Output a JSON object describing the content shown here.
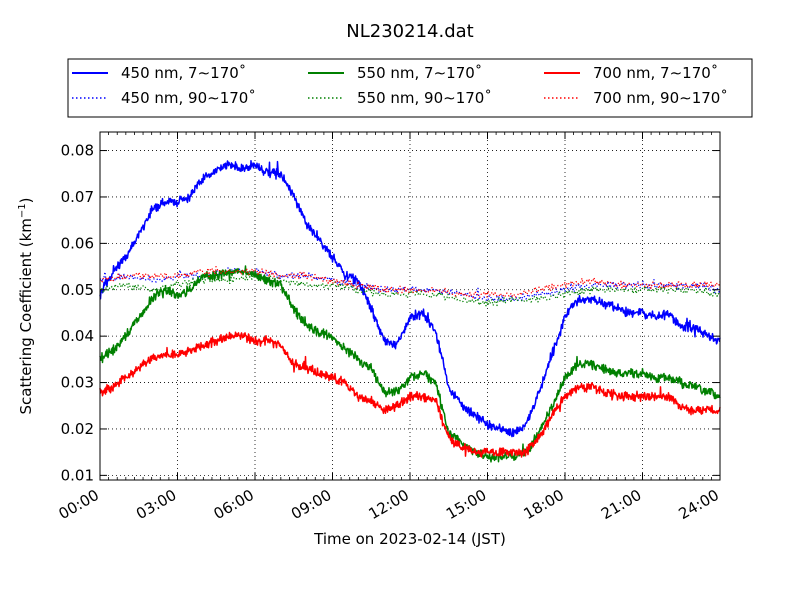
{
  "chart_data": {
    "type": "line",
    "title": "NL230214.dat",
    "xlabel": "Time on 2023-02-14 (JST)",
    "ylabel": "Scattering Coefficient (km",
    "ylabel_sup": "−1",
    "ylabel_close": ")",
    "xlim": [
      0,
      24
    ],
    "ylim": [
      0.009,
      0.084
    ],
    "xticks": [
      0,
      3,
      6,
      9,
      12,
      15,
      18,
      21,
      24
    ],
    "xtick_labels": [
      "00:00",
      "03:00",
      "06:00",
      "09:00",
      "12:00",
      "15:00",
      "18:00",
      "21:00",
      "24:00"
    ],
    "yticks": [
      0.01,
      0.02,
      0.03,
      0.04,
      0.05,
      0.06,
      0.07,
      0.08
    ],
    "ytick_labels": [
      "0.01",
      "0.02",
      "0.03",
      "0.04",
      "0.05",
      "0.06",
      "0.07",
      "0.08"
    ],
    "grid": true,
    "legend_position": "top",
    "series": [
      {
        "name": "450 nm, 7∼170˚",
        "color": "#0000ff",
        "style": "solid",
        "x": [
          0,
          0.5,
          1,
          1.5,
          2,
          2.5,
          3,
          3.5,
          4,
          4.5,
          5,
          5.5,
          6,
          6.5,
          7,
          7.5,
          8,
          8.5,
          9,
          9.5,
          10,
          10.5,
          11,
          11.5,
          12,
          12.5,
          13,
          13.5,
          14,
          14.5,
          15,
          15.5,
          16,
          16.5,
          17,
          17.5,
          18,
          18.5,
          19,
          19.5,
          20,
          20.5,
          21,
          21.5,
          22,
          22.5,
          23,
          23.5,
          24
        ],
        "y": [
          0.049,
          0.054,
          0.057,
          0.062,
          0.067,
          0.069,
          0.069,
          0.07,
          0.074,
          0.076,
          0.077,
          0.076,
          0.077,
          0.075,
          0.075,
          0.07,
          0.064,
          0.061,
          0.057,
          0.053,
          0.052,
          0.046,
          0.039,
          0.038,
          0.044,
          0.045,
          0.041,
          0.029,
          0.025,
          0.023,
          0.021,
          0.02,
          0.019,
          0.021,
          0.028,
          0.036,
          0.044,
          0.048,
          0.048,
          0.047,
          0.046,
          0.045,
          0.045,
          0.044,
          0.045,
          0.042,
          0.042,
          0.04,
          0.039
        ]
      },
      {
        "name": "450 nm, 90∼170˚",
        "color": "#0000ff",
        "style": "dotted",
        "x": [
          0,
          1,
          2,
          3,
          4,
          5,
          6,
          7,
          8,
          9,
          10,
          11,
          12,
          13,
          14,
          15,
          16,
          17,
          18,
          19,
          20,
          21,
          22,
          23,
          24
        ],
        "y": [
          0.052,
          0.053,
          0.052,
          0.053,
          0.053,
          0.054,
          0.054,
          0.053,
          0.053,
          0.052,
          0.051,
          0.05,
          0.05,
          0.05,
          0.049,
          0.048,
          0.048,
          0.049,
          0.05,
          0.051,
          0.051,
          0.051,
          0.051,
          0.051,
          0.05
        ]
      },
      {
        "name": "550 nm, 7∼170˚",
        "color": "#008000",
        "style": "solid",
        "x": [
          0,
          0.5,
          1,
          1.5,
          2,
          2.5,
          3,
          3.5,
          4,
          4.5,
          5,
          5.5,
          6,
          6.5,
          7,
          7.5,
          8,
          8.5,
          9,
          9.5,
          10,
          10.5,
          11,
          11.5,
          12,
          12.5,
          13,
          13.5,
          14,
          14.5,
          15,
          15.5,
          16,
          16.5,
          17,
          17.5,
          18,
          18.5,
          19,
          19.5,
          20,
          20.5,
          21,
          21.5,
          22,
          22.5,
          23,
          23.5,
          24
        ],
        "y": [
          0.035,
          0.037,
          0.04,
          0.044,
          0.048,
          0.05,
          0.049,
          0.05,
          0.053,
          0.053,
          0.054,
          0.054,
          0.053,
          0.052,
          0.051,
          0.046,
          0.042,
          0.041,
          0.04,
          0.037,
          0.035,
          0.033,
          0.028,
          0.028,
          0.031,
          0.032,
          0.03,
          0.019,
          0.017,
          0.015,
          0.014,
          0.014,
          0.014,
          0.015,
          0.019,
          0.025,
          0.031,
          0.034,
          0.034,
          0.033,
          0.032,
          0.032,
          0.032,
          0.031,
          0.031,
          0.03,
          0.029,
          0.028,
          0.027
        ]
      },
      {
        "name": "550 nm, 90∼170˚",
        "color": "#008000",
        "style": "dotted",
        "x": [
          0,
          1,
          2,
          3,
          4,
          5,
          6,
          7,
          8,
          9,
          10,
          11,
          12,
          13,
          14,
          15,
          16,
          17,
          18,
          19,
          20,
          21,
          22,
          23,
          24
        ],
        "y": [
          0.05,
          0.051,
          0.05,
          0.051,
          0.052,
          0.052,
          0.053,
          0.052,
          0.051,
          0.051,
          0.05,
          0.049,
          0.049,
          0.049,
          0.048,
          0.047,
          0.048,
          0.048,
          0.049,
          0.05,
          0.05,
          0.05,
          0.05,
          0.05,
          0.049
        ]
      },
      {
        "name": "700 nm, 7∼170˚",
        "color": "#ff0000",
        "style": "solid",
        "x": [
          0,
          0.5,
          1,
          1.5,
          2,
          2.5,
          3,
          3.5,
          4,
          4.5,
          5,
          5.5,
          6,
          6.5,
          7,
          7.5,
          8,
          8.5,
          9,
          9.5,
          10,
          10.5,
          11,
          11.5,
          12,
          12.5,
          13,
          13.5,
          14,
          14.5,
          15,
          15.5,
          16,
          16.5,
          17,
          17.5,
          18,
          18.5,
          19,
          19.5,
          20,
          20.5,
          21,
          21.5,
          22,
          22.5,
          23,
          23.5,
          24
        ],
        "y": [
          0.028,
          0.029,
          0.031,
          0.033,
          0.035,
          0.036,
          0.036,
          0.037,
          0.038,
          0.039,
          0.04,
          0.04,
          0.039,
          0.039,
          0.038,
          0.034,
          0.033,
          0.032,
          0.031,
          0.03,
          0.027,
          0.026,
          0.024,
          0.025,
          0.027,
          0.027,
          0.026,
          0.018,
          0.016,
          0.015,
          0.015,
          0.015,
          0.015,
          0.015,
          0.018,
          0.023,
          0.027,
          0.029,
          0.029,
          0.028,
          0.027,
          0.027,
          0.027,
          0.027,
          0.027,
          0.025,
          0.024,
          0.024,
          0.024
        ]
      },
      {
        "name": "700 nm, 90∼170˚",
        "color": "#ff0000",
        "style": "dotted",
        "x": [
          0,
          1,
          2,
          3,
          4,
          5,
          6,
          7,
          8,
          9,
          10,
          11,
          12,
          13,
          14,
          15,
          16,
          17,
          18,
          19,
          20,
          21,
          22,
          23,
          24
        ],
        "y": [
          0.052,
          0.053,
          0.053,
          0.053,
          0.054,
          0.054,
          0.054,
          0.053,
          0.053,
          0.052,
          0.051,
          0.05,
          0.05,
          0.05,
          0.049,
          0.049,
          0.049,
          0.05,
          0.051,
          0.052,
          0.051,
          0.051,
          0.051,
          0.051,
          0.051
        ]
      }
    ]
  }
}
